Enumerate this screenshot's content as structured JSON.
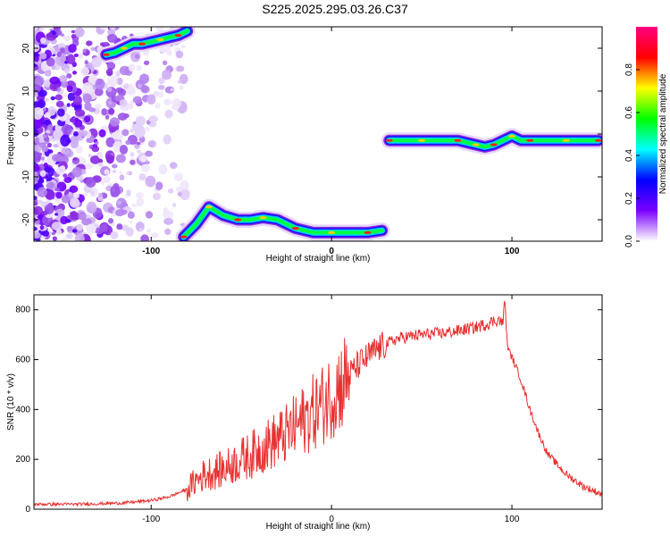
{
  "title": "S225.2025.295.03.26.C37",
  "chart_data": [
    {
      "type": "heatmap",
      "xlabel": "Height of straight line (km)",
      "ylabel": "Frequency (Hz)",
      "xlim": [
        -165,
        150
      ],
      "ylim": [
        -25,
        25
      ],
      "xticks": [
        -100,
        0,
        100
      ],
      "xtick_labels": [
        "-100",
        "0",
        "100"
      ],
      "yticks": [
        -20,
        -10,
        0,
        10,
        20
      ],
      "ytick_labels": [
        "-20",
        "-10",
        "0",
        "10",
        "20"
      ],
      "colorbar": {
        "label": "Normalized spectral amplitude",
        "range": [
          0,
          1
        ],
        "ticks": [
          0,
          0.2,
          0.4,
          0.6,
          0.8
        ],
        "tick_labels": [
          "0.0",
          "0.2",
          "0.4",
          "0.6",
          "0.8"
        ],
        "colors": [
          "#ffffff",
          "#7b00ff",
          "#0000ff",
          "#00ffff",
          "#00ff00",
          "#ffff00",
          "#ff0000",
          "#ff0080"
        ]
      },
      "tracks": [
        {
          "name": "upper-left trace",
          "x": [
            -125,
            -120,
            -115,
            -110,
            -105,
            -100,
            -95,
            -90,
            -85,
            -80
          ],
          "y": [
            18.5,
            19,
            20,
            21,
            21,
            21.5,
            22,
            22.5,
            23,
            24
          ]
        },
        {
          "name": "lower-left trace",
          "x": [
            -82,
            -75,
            -68,
            -60,
            -52,
            -45,
            -38,
            -30,
            -20,
            -10,
            0,
            10,
            20,
            28
          ],
          "y": [
            -24,
            -21,
            -17,
            -19,
            -20,
            -20,
            -19.5,
            -20,
            -22,
            -23,
            -23,
            -23,
            -23,
            -22.5
          ]
        },
        {
          "name": "right trace",
          "x": [
            32,
            40,
            50,
            60,
            70,
            75,
            80,
            85,
            90,
            95,
            100,
            105,
            110,
            120,
            130,
            140,
            148
          ],
          "y": [
            -1.5,
            -1.5,
            -1.5,
            -1.5,
            -1.5,
            -2,
            -2.5,
            -3,
            -2.5,
            -1.5,
            -0.5,
            -1.5,
            -1.5,
            -1.5,
            -1.5,
            -1.5,
            -1.5
          ]
        }
      ]
    },
    {
      "type": "line",
      "xlabel": "Height of straight line (km)",
      "ylabel": "SNR (10 * v/v)",
      "xlim": [
        -165,
        150
      ],
      "ylim": [
        0,
        860
      ],
      "xticks": [
        -100,
        0,
        100
      ],
      "xtick_labels": [
        "-100",
        "0",
        "100"
      ],
      "yticks": [
        0,
        200,
        400,
        600,
        800
      ],
      "ytick_labels": [
        "0",
        "200",
        "400",
        "600",
        "800"
      ],
      "series": [
        {
          "name": "SNR",
          "color": "#e83030",
          "x": [
            -165,
            -140,
            -115,
            -100,
            -90,
            -80,
            -75,
            -70,
            -60,
            -55,
            -50,
            -45,
            -40,
            -35,
            -30,
            -25,
            -20,
            -15,
            -10,
            -5,
            0,
            5,
            10,
            15,
            20,
            25,
            30,
            35,
            40,
            50,
            60,
            70,
            80,
            85,
            90,
            93,
            95,
            96,
            97,
            98,
            100,
            105,
            110,
            115,
            120,
            130,
            140,
            150
          ],
          "y": [
            20,
            20,
            25,
            35,
            50,
            80,
            115,
            140,
            160,
            180,
            200,
            215,
            240,
            260,
            280,
            300,
            330,
            360,
            390,
            420,
            460,
            500,
            540,
            580,
            610,
            640,
            660,
            680,
            690,
            700,
            705,
            715,
            730,
            740,
            755,
            760,
            740,
            860,
            700,
            640,
            610,
            520,
            400,
            300,
            220,
            140,
            90,
            60
          ]
        }
      ]
    }
  ]
}
